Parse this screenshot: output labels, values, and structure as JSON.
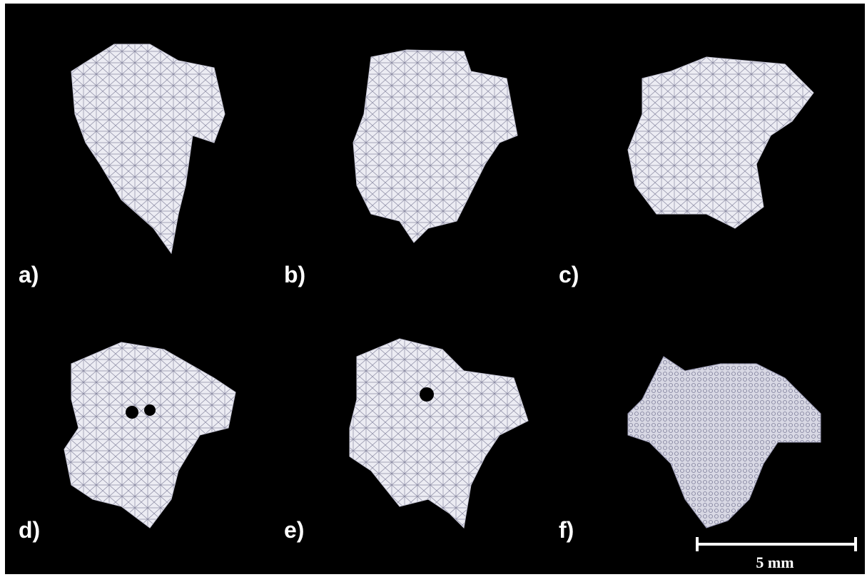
{
  "panels": [
    {
      "label": "a)"
    },
    {
      "label": "b)"
    },
    {
      "label": "c)"
    },
    {
      "label": "d)"
    },
    {
      "label": "e)"
    },
    {
      "label": "f)"
    }
  ],
  "scale_bar": {
    "label": "5 mm"
  }
}
